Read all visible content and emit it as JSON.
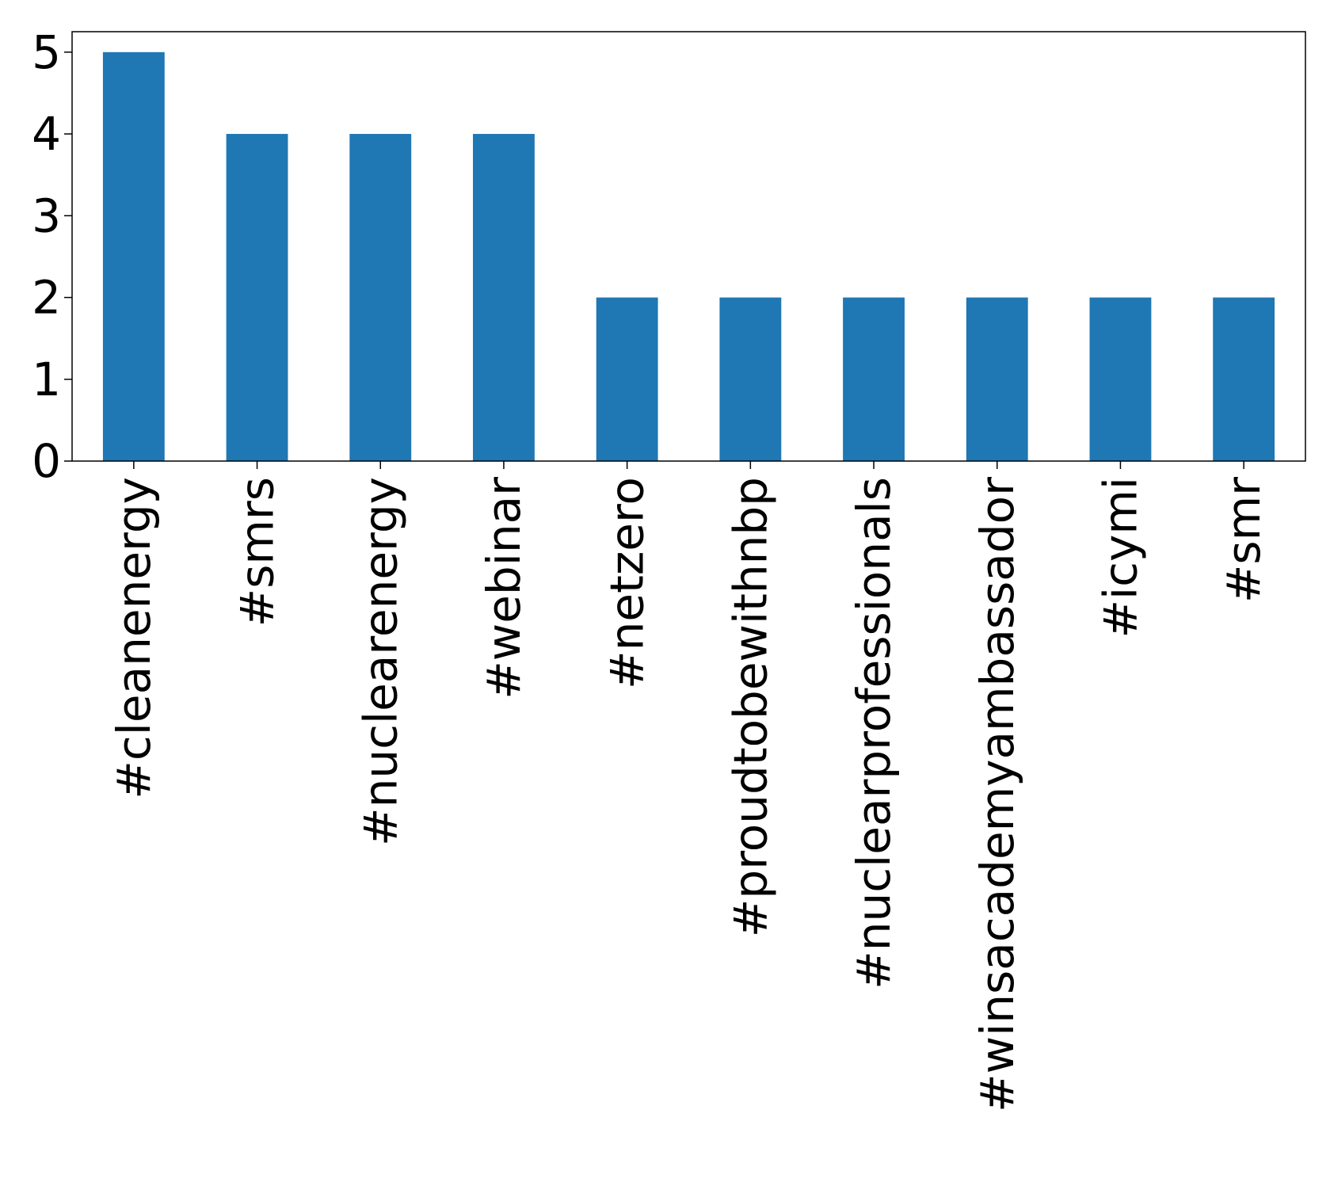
{
  "chart_data": {
    "type": "bar",
    "title": "",
    "xlabel": "",
    "ylabel": "",
    "categories": [
      "#cleanenergy",
      "#smrs",
      "#nuclearenergy",
      "#webinar",
      "#netzero",
      "#proudtobewithnbp",
      "#nuclearprofessionals",
      "#winsacademyambassador",
      "#icymi",
      "#smr"
    ],
    "values": [
      5,
      4,
      4,
      4,
      2,
      2,
      2,
      2,
      2,
      2
    ],
    "ylim": [
      0,
      5.25
    ],
    "yticks": [
      0,
      1,
      2,
      3,
      4,
      5
    ],
    "grid": false,
    "legend": "none",
    "bar_color": "#1f77b4"
  }
}
